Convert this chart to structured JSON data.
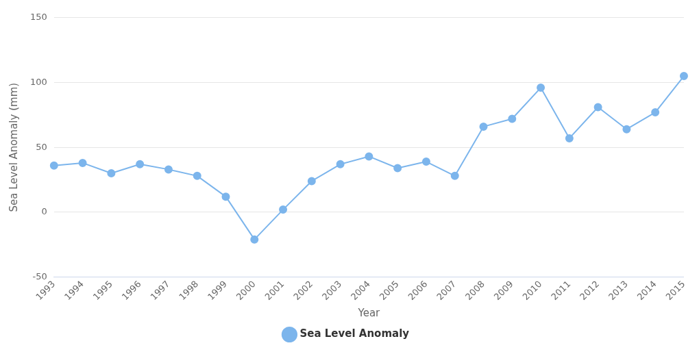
{
  "chart_data": {
    "type": "line",
    "xlabel": "Year",
    "ylabel": "Sea Level Anomaly (mm)",
    "categories": [
      "1993",
      "1994",
      "1995",
      "1996",
      "1997",
      "1998",
      "1999",
      "2000",
      "2001",
      "2002",
      "2003",
      "2004",
      "2005",
      "2006",
      "2007",
      "2008",
      "2009",
      "2010",
      "2011",
      "2012",
      "2013",
      "2014",
      "2015"
    ],
    "series": [
      {
        "name": "Sea Level Anomaly",
        "color": "#7cb5ec",
        "values": [
          36,
          38,
          30,
          37,
          33,
          28,
          12,
          -21,
          2,
          24,
          37,
          43,
          34,
          39,
          28,
          66,
          72,
          96,
          57,
          81,
          64,
          77,
          105
        ]
      }
    ],
    "ylim": [
      -50,
      150
    ],
    "yticks": [
      -50,
      0,
      50,
      100,
      150
    ],
    "grid": "y",
    "legend": "bottom",
    "marker": "circle",
    "line_style": "solid"
  }
}
